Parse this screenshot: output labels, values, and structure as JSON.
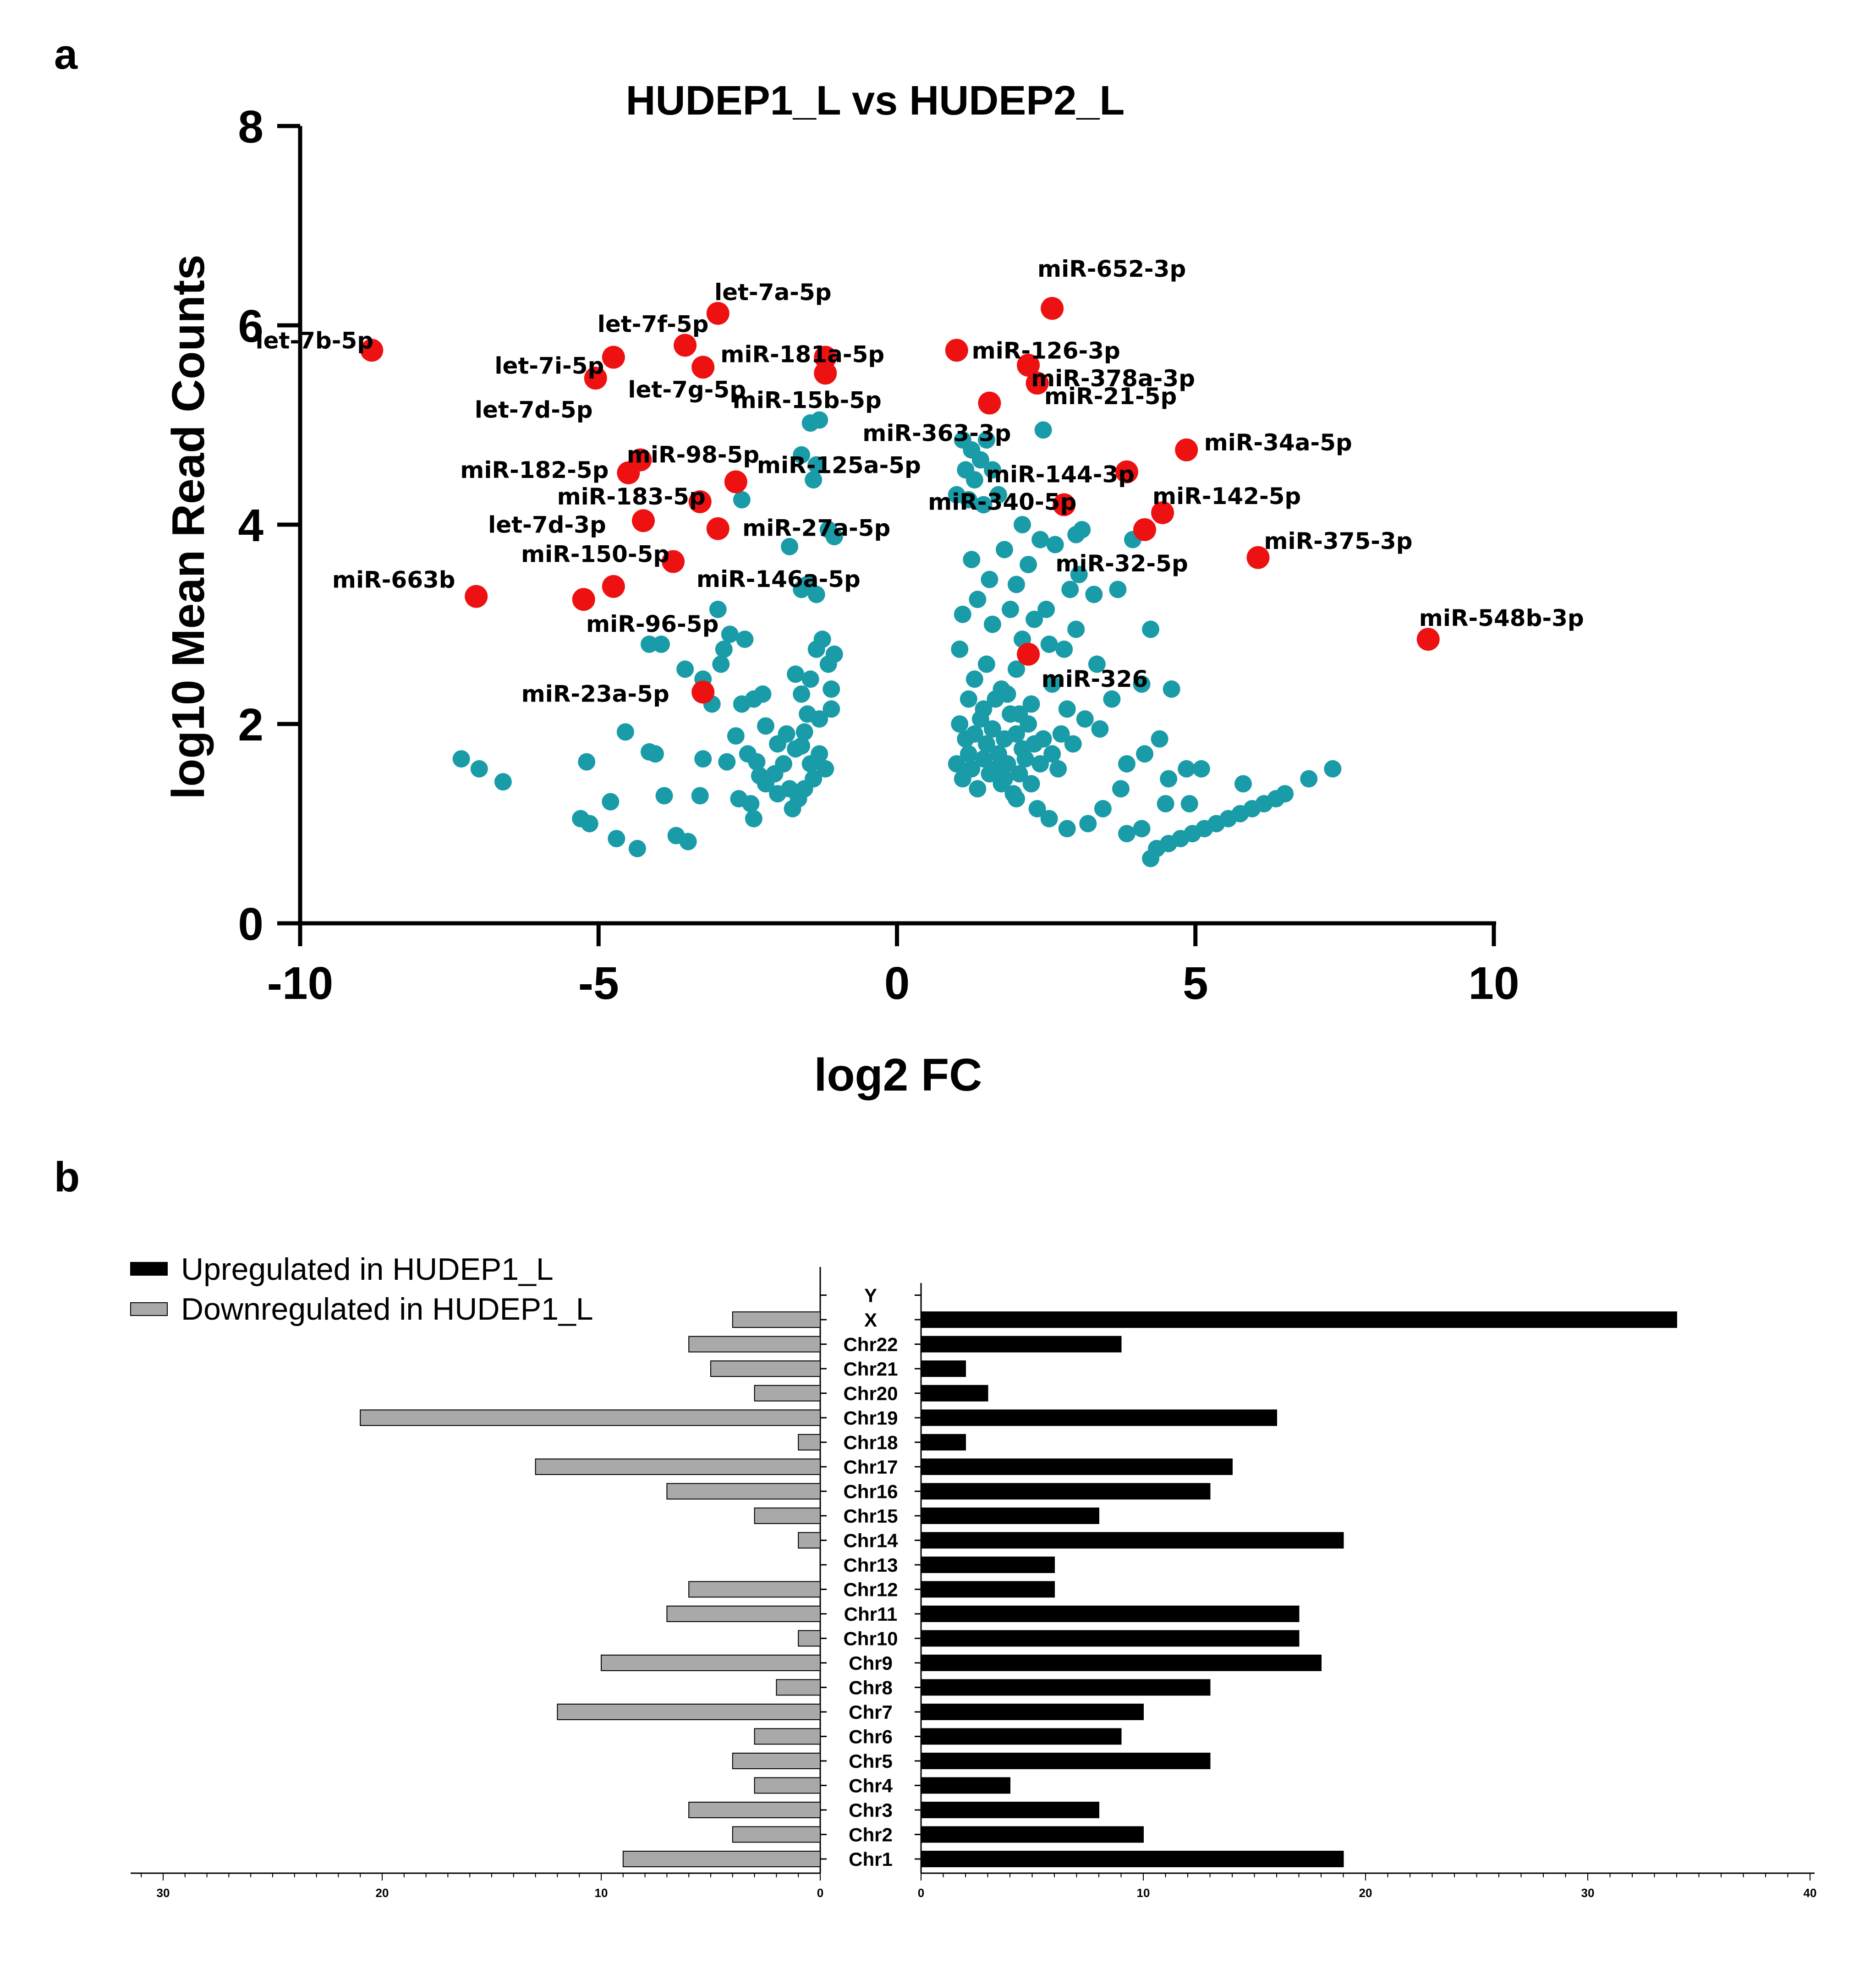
{
  "panel_a_label": "a",
  "panel_b_label": "b",
  "colors": {
    "significant": "#ee1111",
    "other": "#1a9ba8",
    "up": "#000000",
    "down": "#a9a9a9"
  },
  "chart_data": [
    {
      "type": "scatter",
      "title": "HUDEP1_L vs HUDEP2_L",
      "xlabel": "log2 FC",
      "ylabel": "log10 Mean Read Counts",
      "xlim": [
        -10,
        10
      ],
      "ylim": [
        0,
        8
      ],
      "xticks": [
        "-10",
        "-5",
        "0",
        "5",
        "10"
      ],
      "yticks": [
        "0",
        "2",
        "4",
        "6",
        "8"
      ],
      "highlighted": [
        {
          "name": "let-7b-5p",
          "x": -8.8,
          "y": 5.75
        },
        {
          "name": "let-7a-5p",
          "x": -3.0,
          "y": 6.12
        },
        {
          "name": "let-7f-5p",
          "x": -3.55,
          "y": 5.8
        },
        {
          "name": "let-7i-5p",
          "x": -4.75,
          "y": 5.68
        },
        {
          "name": "let-7d-5p",
          "x": -5.05,
          "y": 5.47
        },
        {
          "name": "let-7g-5p",
          "x": -3.25,
          "y": 5.58
        },
        {
          "name": "miR-181a-5p",
          "x": -1.2,
          "y": 5.68
        },
        {
          "name": "miR-15b-5p",
          "x": -1.2,
          "y": 5.52
        },
        {
          "name": "miR-652-3p",
          "x": 2.6,
          "y": 6.17
        },
        {
          "name": "miR-126-3p",
          "x": 1.0,
          "y": 5.75
        },
        {
          "name": "miR-378a-3p",
          "x": 2.2,
          "y": 5.6
        },
        {
          "name": "miR-21-5p",
          "x": 2.35,
          "y": 5.42
        },
        {
          "name": "miR-363-3p",
          "x": 1.55,
          "y": 5.22
        },
        {
          "name": "miR-34a-5p",
          "x": 4.85,
          "y": 4.75
        },
        {
          "name": "miR-144-3p",
          "x": 3.85,
          "y": 4.53
        },
        {
          "name": "miR-142-5p",
          "x": 4.45,
          "y": 4.12
        },
        {
          "name": "miR-340-5p",
          "x": 2.8,
          "y": 4.2
        },
        {
          "name": "miR-32-5p",
          "x": 4.15,
          "y": 3.95
        },
        {
          "name": "miR-375-3p",
          "x": 6.05,
          "y": 3.67
        },
        {
          "name": "miR-548b-3p",
          "x": 8.9,
          "y": 2.85
        },
        {
          "name": "miR-326",
          "x": 2.2,
          "y": 2.7
        },
        {
          "name": "miR-98-5p",
          "x": -4.3,
          "y": 4.65
        },
        {
          "name": "miR-182-5p",
          "x": -4.5,
          "y": 4.52
        },
        {
          "name": "miR-125a-5p",
          "x": -2.7,
          "y": 4.43
        },
        {
          "name": "miR-183-5p",
          "x": -3.3,
          "y": 4.23
        },
        {
          "name": "let-7d-3p",
          "x": -4.25,
          "y": 4.04
        },
        {
          "name": "miR-27a-5p",
          "x": -3.0,
          "y": 3.96
        },
        {
          "name": "miR-150-5p",
          "x": -3.75,
          "y": 3.63
        },
        {
          "name": "miR-663b",
          "x": -7.05,
          "y": 3.28
        },
        {
          "name": "miR-96-5p",
          "x": -5.25,
          "y": 3.25
        },
        {
          "name": "miR-146a-5p",
          "x": -4.75,
          "y": 3.38
        },
        {
          "name": "miR-23a-5p",
          "x": -3.25,
          "y": 2.32
        }
      ],
      "others": [
        [
          -7.3,
          1.65
        ],
        [
          -7.0,
          1.55
        ],
        [
          -6.6,
          1.42
        ],
        [
          -5.3,
          1.05
        ],
        [
          -5.15,
          1.0
        ],
        [
          -4.8,
          1.22
        ],
        [
          -4.7,
          0.85
        ],
        [
          -4.35,
          0.75
        ],
        [
          -4.55,
          1.92
        ],
        [
          -4.15,
          1.72
        ],
        [
          -4.05,
          1.7
        ],
        [
          -3.9,
          1.28
        ],
        [
          -3.7,
          0.88
        ],
        [
          -3.5,
          0.82
        ],
        [
          -5.2,
          1.62
        ],
        [
          -3.3,
          1.28
        ],
        [
          -3.25,
          1.65
        ],
        [
          -2.65,
          1.25
        ],
        [
          -2.4,
          1.05
        ],
        [
          -2.45,
          1.2
        ],
        [
          -2.3,
          1.48
        ],
        [
          -4.15,
          2.8
        ],
        [
          -3.95,
          2.8
        ],
        [
          -3.55,
          2.55
        ],
        [
          -3.25,
          2.45
        ],
        [
          -3.1,
          2.2
        ],
        [
          -2.9,
          2.75
        ],
        [
          -2.8,
          2.9
        ],
        [
          -2.55,
          2.85
        ],
        [
          -2.6,
          2.2
        ],
        [
          -2.4,
          2.25
        ],
        [
          -2.2,
          1.98
        ],
        [
          -2.0,
          1.8
        ],
        [
          -1.85,
          1.9
        ],
        [
          -1.7,
          2.5
        ],
        [
          -1.6,
          2.3
        ],
        [
          -1.5,
          2.1
        ],
        [
          -1.35,
          2.75
        ],
        [
          -1.25,
          2.85
        ],
        [
          -1.15,
          2.6
        ],
        [
          -1.05,
          2.7
        ],
        [
          -1.1,
          2.35
        ],
        [
          -1.45,
          1.6
        ],
        [
          -1.3,
          1.7
        ],
        [
          -1.2,
          1.55
        ],
        [
          -1.4,
          1.45
        ],
        [
          -1.55,
          1.35
        ],
        [
          -1.65,
          1.25
        ],
        [
          -1.75,
          1.15
        ],
        [
          -1.9,
          1.6
        ],
        [
          -2.05,
          1.5
        ],
        [
          -2.2,
          1.4
        ],
        [
          -2.35,
          1.62
        ],
        [
          -2.5,
          1.7
        ],
        [
          -2.7,
          1.88
        ],
        [
          -1.7,
          1.75
        ],
        [
          -1.55,
          1.92
        ],
        [
          -1.3,
          2.05
        ],
        [
          -1.1,
          2.15
        ],
        [
          -1.6,
          1.78
        ],
        [
          -2.85,
          1.62
        ],
        [
          -2.0,
          1.3
        ],
        [
          -1.8,
          1.35
        ],
        [
          -3.0,
          3.15
        ],
        [
          -2.6,
          4.25
        ],
        [
          -1.8,
          3.78
        ],
        [
          -1.6,
          3.35
        ],
        [
          -1.5,
          3.4
        ],
        [
          -1.35,
          3.3
        ],
        [
          -1.6,
          4.7
        ],
        [
          -1.45,
          5.02
        ],
        [
          -1.3,
          5.05
        ],
        [
          -1.35,
          4.6
        ],
        [
          -1.4,
          4.45
        ],
        [
          -1.05,
          3.88
        ],
        [
          -1.15,
          3.95
        ],
        [
          -2.95,
          2.6
        ],
        [
          -2.25,
          2.3
        ],
        [
          -1.45,
          2.45
        ],
        [
          1.1,
          4.85
        ],
        [
          1.25,
          4.75
        ],
        [
          1.5,
          4.85
        ],
        [
          1.4,
          4.65
        ],
        [
          2.45,
          4.95
        ],
        [
          1.15,
          4.55
        ],
        [
          1.3,
          4.45
        ],
        [
          1.6,
          4.55
        ],
        [
          1.2,
          4.25
        ],
        [
          1.45,
          4.2
        ],
        [
          1.0,
          4.3
        ],
        [
          1.7,
          4.3
        ],
        [
          2.1,
          4.0
        ],
        [
          2.4,
          3.85
        ],
        [
          3.0,
          3.9
        ],
        [
          3.1,
          3.95
        ],
        [
          2.65,
          3.8
        ],
        [
          1.25,
          3.65
        ],
        [
          1.55,
          3.45
        ],
        [
          1.8,
          3.75
        ],
        [
          2.2,
          3.6
        ],
        [
          2.0,
          3.4
        ],
        [
          2.5,
          3.15
        ],
        [
          2.9,
          3.35
        ],
        [
          3.05,
          3.5
        ],
        [
          3.3,
          3.3
        ],
        [
          3.7,
          3.35
        ],
        [
          3.95,
          3.85
        ],
        [
          1.1,
          3.1
        ],
        [
          1.35,
          3.25
        ],
        [
          1.6,
          3.0
        ],
        [
          1.9,
          3.15
        ],
        [
          2.1,
          2.85
        ],
        [
          2.3,
          3.05
        ],
        [
          2.55,
          2.8
        ],
        [
          2.8,
          2.75
        ],
        [
          3.0,
          2.95
        ],
        [
          3.35,
          2.6
        ],
        [
          1.05,
          2.75
        ],
        [
          1.3,
          2.45
        ],
        [
          1.5,
          2.6
        ],
        [
          1.75,
          2.35
        ],
        [
          2.0,
          2.55
        ],
        [
          2.25,
          2.2
        ],
        [
          2.6,
          2.4
        ],
        [
          2.85,
          2.15
        ],
        [
          3.15,
          2.05
        ],
        [
          3.4,
          1.95
        ],
        [
          3.6,
          2.25
        ],
        [
          4.1,
          2.4
        ],
        [
          4.4,
          1.85
        ],
        [
          4.25,
          2.95
        ],
        [
          4.6,
          2.35
        ],
        [
          3.85,
          1.6
        ],
        [
          4.15,
          1.7
        ],
        [
          4.55,
          1.45
        ],
        [
          4.85,
          1.55
        ],
        [
          5.1,
          1.55
        ],
        [
          3.75,
          1.35
        ],
        [
          3.45,
          1.15
        ],
        [
          3.2,
          1.0
        ],
        [
          2.85,
          0.95
        ],
        [
          2.55,
          1.05
        ],
        [
          2.35,
          1.15
        ],
        [
          2.0,
          1.25
        ],
        [
          1.8,
          1.45
        ],
        [
          3.85,
          0.9
        ],
        [
          4.1,
          0.95
        ],
        [
          4.25,
          0.65
        ],
        [
          4.5,
          1.2
        ],
        [
          4.9,
          1.2
        ],
        [
          5.8,
          1.4
        ],
        [
          6.9,
          1.45
        ],
        [
          7.3,
          1.55
        ],
        [
          1.05,
          2.0
        ],
        [
          1.15,
          1.85
        ],
        [
          1.2,
          1.7
        ],
        [
          1.3,
          1.9
        ],
        [
          1.4,
          2.05
        ],
        [
          1.5,
          1.8
        ],
        [
          1.6,
          1.95
        ],
        [
          1.7,
          1.7
        ],
        [
          1.8,
          1.85
        ],
        [
          1.9,
          2.1
        ],
        [
          2.0,
          1.9
        ],
        [
          2.1,
          1.75
        ],
        [
          2.2,
          2.0
        ],
        [
          2.3,
          1.8
        ],
        [
          2.4,
          1.6
        ],
        [
          1.0,
          1.6
        ],
        [
          1.1,
          1.45
        ],
        [
          1.25,
          1.55
        ],
        [
          1.35,
          1.35
        ],
        [
          1.45,
          1.65
        ],
        [
          1.55,
          1.5
        ],
        [
          1.65,
          1.55
        ],
        [
          1.75,
          1.4
        ],
        [
          1.85,
          1.6
        ],
        [
          1.95,
          1.3
        ],
        [
          2.05,
          1.5
        ],
        [
          2.15,
          1.65
        ],
        [
          2.25,
          1.4
        ],
        [
          2.45,
          1.85
        ],
        [
          2.6,
          1.7
        ],
        [
          2.7,
          1.55
        ],
        [
          2.75,
          1.9
        ],
        [
          2.95,
          1.8
        ],
        [
          1.2,
          2.25
        ],
        [
          1.45,
          2.15
        ],
        [
          1.65,
          2.25
        ],
        [
          1.85,
          2.3
        ],
        [
          2.05,
          2.1
        ],
        [
          4.35,
          0.75
        ],
        [
          4.55,
          0.8
        ],
        [
          4.75,
          0.85
        ],
        [
          4.95,
          0.9
        ],
        [
          5.15,
          0.95
        ],
        [
          5.35,
          1.0
        ],
        [
          5.55,
          1.05
        ],
        [
          5.75,
          1.1
        ],
        [
          5.95,
          1.15
        ],
        [
          6.15,
          1.2
        ],
        [
          6.35,
          1.25
        ],
        [
          6.5,
          1.3
        ]
      ]
    },
    {
      "type": "bar",
      "orientation": "horizontal-diverging",
      "categories": [
        "Chr1",
        "Chr2",
        "Chr3",
        "Chr4",
        "Chr5",
        "Chr6",
        "Chr7",
        "Chr8",
        "Chr9",
        "Chr10",
        "Chr11",
        "Chr12",
        "Chr13",
        "Chr14",
        "Chr15",
        "Chr16",
        "Chr17",
        "Chr18",
        "Chr19",
        "Chr20",
        "Chr21",
        "Chr22",
        "X",
        "Y"
      ],
      "series": [
        {
          "name": "Upregulated in HUDEP1_L",
          "values": [
            19,
            10,
            8,
            4,
            13,
            9,
            10,
            13,
            18,
            17,
            17,
            6,
            6,
            19,
            8,
            13,
            14,
            2,
            16,
            3,
            2,
            9,
            34,
            0
          ]
        },
        {
          "name": "Downregulated in HUDEP1_L",
          "values": [
            9,
            4,
            6,
            3,
            4,
            3,
            12,
            2,
            10,
            1,
            7,
            6,
            0,
            1,
            3,
            7,
            13,
            1,
            21,
            3,
            5,
            6,
            4,
            0
          ]
        }
      ],
      "left_xlim": [
        0,
        31
      ],
      "right_xlim": [
        0,
        40
      ],
      "left_ticks": [
        "30",
        "20",
        "10",
        "0"
      ],
      "right_ticks": [
        "0",
        "10",
        "20",
        "30",
        "40"
      ]
    }
  ]
}
